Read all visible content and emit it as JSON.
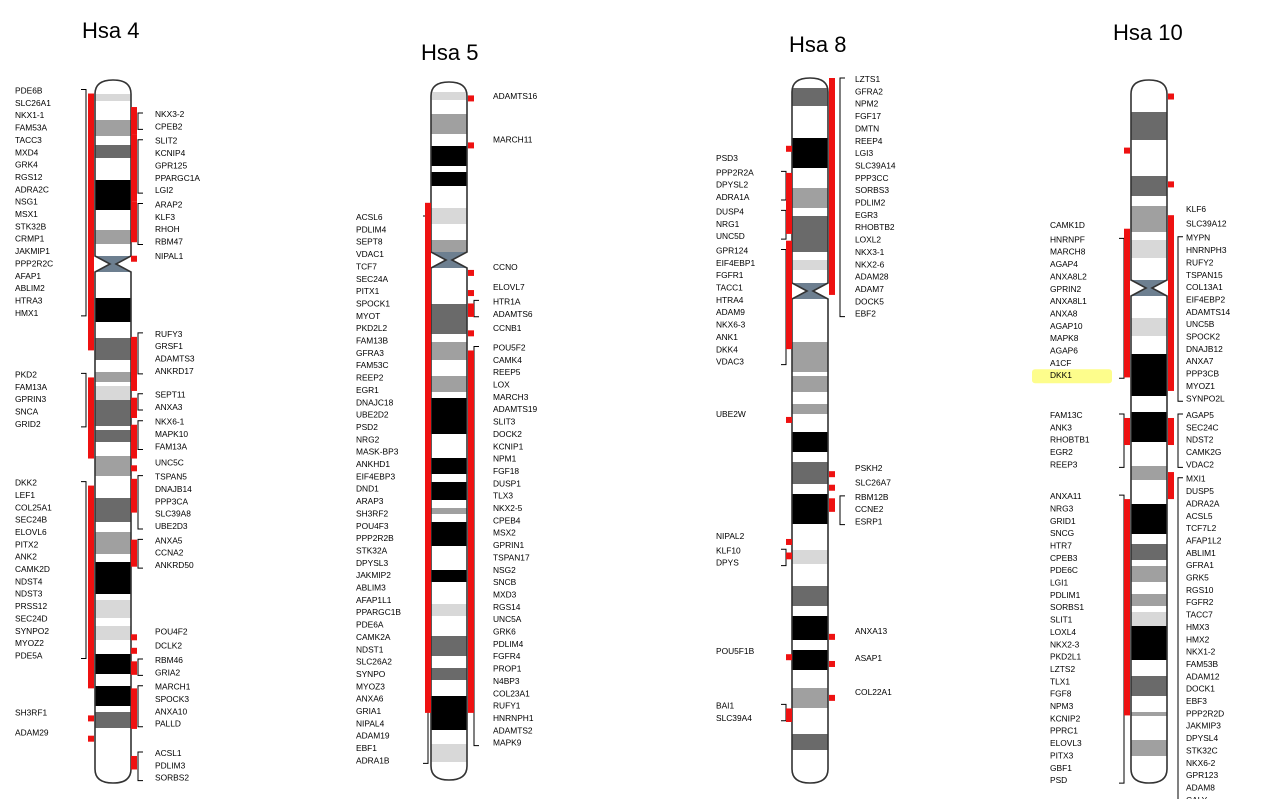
{
  "chromosomes": [
    {
      "title": "Hsa 4",
      "groups": [
        {
          "side": "left",
          "range": [
            1,
            20
          ],
          "genes": [
            "PDE6B",
            "SLC26A1",
            "NKX1-1",
            "FAM53A",
            "TACC3",
            "MXD4",
            "GRK4",
            "RGS12",
            "ADRA2C",
            "NSG1",
            "MSX1",
            "STK32B",
            "CRMP1",
            "JAKMIP1",
            "PPP2R2C",
            "AFAP1",
            "ABLIM2",
            "HTRA3",
            "HMX1"
          ]
        },
        {
          "side": "right",
          "range": [
            2,
            4
          ],
          "genes": [
            "NKX3-2",
            "CPEB2"
          ]
        },
        {
          "side": "right",
          "range": [
            4,
            9
          ],
          "genes": [
            "SLIT2",
            "KCNIP4",
            "GPR125",
            "PPARGC1A",
            "LGI2"
          ]
        },
        {
          "side": "right",
          "range": [
            9,
            12
          ],
          "genes": [
            "ARAP2",
            "KLF3",
            "RHOH",
            "RBM47"
          ]
        },
        {
          "side": "right",
          "range": [
            13,
            13
          ],
          "genes": [
            "NIPAL1"
          ]
        },
        {
          "side": "right",
          "range": [
            19,
            23
          ],
          "genes": [
            "RUFY3",
            "GRSF1",
            "ADAMTS3",
            "ANKRD17"
          ]
        },
        {
          "side": "right",
          "range": [
            23.5,
            25
          ],
          "genes": [
            "SEPT11",
            "ANXA3"
          ]
        },
        {
          "side": "left",
          "range": [
            22,
            28
          ],
          "genes": [
            "PKD2",
            "FAM13A",
            "GPRIN3",
            "SNCA",
            "GRID2"
          ]
        },
        {
          "side": "right",
          "range": [
            25.5,
            28
          ],
          "genes": [
            "NKX6-1",
            "MAPK10",
            "FAM13A"
          ]
        },
        {
          "side": "right",
          "range": [
            28.5,
            28.5
          ],
          "genes": [
            "UNC5C"
          ]
        },
        {
          "side": "right",
          "range": [
            29.5,
            32
          ],
          "genes": [
            "TSPAN5",
            "DNAJB14",
            "PPP3CA",
            "SLC39A8",
            "UBE2D3"
          ]
        },
        {
          "side": "left",
          "range": [
            30,
            45
          ],
          "genes": [
            "DKK2",
            "LEF1",
            "COL25A1",
            "SEC24B",
            "ELOVL6",
            "PITX2",
            "ANK2",
            "CAMK2D",
            "NDST4",
            "NDST3",
            "PRSS12",
            "SEC24D",
            "SYNPO2",
            "MYOZ2",
            "PDE5A"
          ]
        },
        {
          "side": "right",
          "range": [
            34,
            36
          ],
          "genes": [
            "ANXA5",
            "CCNA2",
            "ANKRD50"
          ]
        },
        {
          "side": "right",
          "range": [
            41,
            41
          ],
          "genes": [
            "POU4F2"
          ]
        },
        {
          "side": "right",
          "range": [
            42,
            42
          ],
          "genes": [
            "DCLK2"
          ]
        },
        {
          "side": "right",
          "range": [
            43,
            44
          ],
          "genes": [
            "RBM46",
            "GRIA2"
          ]
        },
        {
          "side": "right",
          "range": [
            45,
            48
          ],
          "genes": [
            "MARCH1",
            "SPOCK3",
            "ANXA10",
            "PALLD"
          ]
        },
        {
          "side": "left",
          "range": [
            47,
            47
          ],
          "genes": [
            "SH3RF1"
          ]
        },
        {
          "side": "left",
          "range": [
            48.5,
            48.5
          ],
          "genes": [
            "ADAM29"
          ]
        },
        {
          "side": "right",
          "range": [
            50,
            51
          ],
          "genes": [
            "ACSL1",
            "PDLIM3",
            "SORBS2"
          ]
        }
      ]
    },
    {
      "title": "Hsa 5",
      "groups": [
        {
          "side": "right",
          "range": [
            1,
            1
          ],
          "genes": [
            "ADAMTS16"
          ]
        },
        {
          "side": "right",
          "range": [
            4.5,
            4.5
          ],
          "genes": [
            "MARCH11"
          ]
        },
        {
          "side": "left",
          "range": [
            9,
            47
          ],
          "genes": [
            "ACSL6",
            "PDLIM4",
            "SEPT8",
            "VDAC1",
            "TCF7",
            "SEC24A",
            "PITX1",
            "SPOCK1",
            "MYOT",
            "PKD2L2",
            "FAM13B",
            "GFRA3",
            "FAM53C",
            "REEP2",
            "EGR1",
            "DNAJC18",
            "UBE2D2",
            "PSD2",
            "NRG2",
            "MASK-BP3",
            "ANKHD1",
            "EIF4EBP3",
            "DND1",
            "ARAP3",
            "SH3RF2",
            "POU4F3",
            "PPP2R2B",
            "STK32A",
            "DPYSL3",
            "JAKMIP2",
            "ABLIM3",
            "AFAP1L1",
            "PPARGC1B",
            "PDE6A",
            "CAMK2A",
            "NDST1",
            "SLC26A2",
            "SYNPO",
            "MYOZ3",
            "ANXA6",
            "GRIA1",
            "NIPAL4",
            "ADAM19",
            "EBF1",
            "ADRA1B"
          ]
        },
        {
          "side": "right",
          "range": [
            14,
            14
          ],
          "genes": [
            "CCNO"
          ]
        },
        {
          "side": "right",
          "range": [
            15.5,
            15.5
          ],
          "genes": [
            "ELOVL7"
          ]
        },
        {
          "side": "right",
          "range": [
            16.5,
            17.5
          ],
          "genes": [
            "HTR1A",
            "ADAMTS6"
          ]
        },
        {
          "side": "right",
          "range": [
            18.5,
            18.5
          ],
          "genes": [
            "CCNB1"
          ]
        },
        {
          "side": "right",
          "range": [
            20,
            47
          ],
          "genes": [
            "POU5F2",
            "CAMK4",
            "REEP5",
            "LOX",
            "MARCH3",
            "ADAMTS19",
            "SLIT3",
            "DOCK2",
            "KCNIP1",
            "NPM1",
            "FGF18",
            "DUSP1",
            "TLX3",
            "NKX2-5",
            "CPEB4",
            "MSX2",
            "GPRIN1",
            "TSPAN17",
            "NSG2",
            "SNCB",
            "MXD3",
            "RGS14",
            "UNC5A",
            "GRK6",
            "PDLIM4",
            "FGFR4",
            "PROP1",
            "N4BP3",
            "COL23A1",
            "RUFY1",
            "HNRNPH1",
            "ADAMTS2",
            "MAPK9"
          ]
        }
      ]
    },
    {
      "title": "Hsa 8",
      "groups": [
        {
          "side": "right",
          "range": [
            0,
            16
          ],
          "genes": [
            "LZTS1",
            "GFRA2",
            "NPM2",
            "FGF17",
            "DMTN",
            "REEP4",
            "LGI3",
            "SLC39A14",
            "PPP3CC",
            "SORBS3",
            "PDLIM2",
            "EGR3",
            "RHOBTB2",
            "LOXL2",
            "NKX3-1",
            "NKX2-6",
            "ADAM28",
            "ADAM7",
            "DOCK5",
            "EBF2"
          ]
        },
        {
          "side": "left",
          "range": [
            5,
            5
          ],
          "genes": [
            "PSD3"
          ]
        },
        {
          "side": "left",
          "range": [
            7,
            9
          ],
          "genes": [
            "PPP2R2A",
            "DPYSL2",
            "ADRA1A"
          ]
        },
        {
          "side": "left",
          "range": [
            9,
            11.5
          ],
          "genes": [
            "DUSP4",
            "NRG1",
            "UNC5D"
          ]
        },
        {
          "side": "left",
          "range": [
            12,
            20
          ],
          "genes": [
            "GPR124",
            "EIF4EBP1",
            "FGFR1",
            "TACC1",
            "HTRA4",
            "ADAM9",
            "NKX6-3",
            "ANK1",
            "DKK4",
            "VDAC3"
          ]
        },
        {
          "side": "left",
          "range": [
            25,
            25
          ],
          "genes": [
            "UBE2W"
          ]
        },
        {
          "side": "right",
          "range": [
            29,
            29
          ],
          "genes": [
            "PSKH2"
          ]
        },
        {
          "side": "right",
          "range": [
            30,
            30
          ],
          "genes": [
            "SLC26A7"
          ]
        },
        {
          "side": "right",
          "range": [
            31,
            32
          ],
          "genes": [
            "RBM12B",
            "CCNE2",
            "ESRP1"
          ]
        },
        {
          "side": "left",
          "range": [
            34,
            34
          ],
          "genes": [
            "NIPAL2"
          ]
        },
        {
          "side": "left",
          "range": [
            35,
            35.5
          ],
          "genes": [
            "KLF10",
            "DPYS"
          ]
        },
        {
          "side": "right",
          "range": [
            41,
            41
          ],
          "genes": [
            "ANXA13"
          ]
        },
        {
          "side": "left",
          "range": [
            42.5,
            42.5
          ],
          "genes": [
            "POU5F1B"
          ]
        },
        {
          "side": "right",
          "range": [
            43,
            43
          ],
          "genes": [
            "ASAP1"
          ]
        },
        {
          "side": "right",
          "range": [
            45.5,
            45.5
          ],
          "genes": [
            "COL22A1"
          ]
        },
        {
          "side": "left",
          "range": [
            46.5,
            47.5
          ],
          "genes": [
            "BAI1",
            "SLC39A4"
          ]
        }
      ]
    },
    {
      "title": "Hsa 10",
      "groups": [
        {
          "side": "right",
          "range": [
            1,
            1
          ],
          "genes": [
            "KLF6"
          ]
        },
        {
          "side": "left",
          "range": [
            5,
            5
          ],
          "genes": [
            "CAMK1D"
          ]
        },
        {
          "side": "right",
          "range": [
            7.5,
            7.5
          ],
          "genes": [
            "SLC39A12"
          ]
        },
        {
          "side": "left",
          "range": [
            11,
            22
          ],
          "genes": [
            "HNRNPF",
            "MARCH8",
            "AGAP4",
            "ANXA8L2",
            "GPRIN2",
            "ANXA8L1",
            "ANXA8",
            "AGAP10",
            "MAPK8",
            "AGAP6",
            "A1CF",
            "DKK1"
          ]
        },
        {
          "side": "right",
          "range": [
            10,
            23
          ],
          "genes": [
            "MYPN",
            "HNRNPH3",
            "RUFY2",
            "TSPAN15",
            "COL13A1",
            "EIF4EBP2",
            "ADAMTS14",
            "UNC5B",
            "SPOCK2",
            "DNAJB12",
            "ANXA7",
            "PPP3CB",
            "MYOZ1",
            "SYNPO2L"
          ]
        },
        {
          "side": "left",
          "range": [
            25,
            27
          ],
          "genes": [
            "FAM13C",
            "ANK3",
            "RHOBTB1",
            "EGR2",
            "REEP3"
          ]
        },
        {
          "side": "right",
          "range": [
            25,
            27
          ],
          "genes": [
            "AGAP5",
            "SEC24C",
            "NDST2",
            "CAMK2G",
            "VDAC2"
          ]
        },
        {
          "side": "right",
          "range": [
            29,
            31
          ],
          "genes": [
            "MXI1",
            "DUSP5",
            "ADRA2A",
            "ACSL5",
            "TCF7L2",
            "AFAP1L2",
            "ABLIM1",
            "GFRA1",
            "GRK5",
            "RGS10",
            "FGFR2",
            "TACC7",
            "HMX3",
            "HMX2",
            "NKX1-2",
            "FAM53B",
            "ADAM12",
            "DOCK1",
            "EBF3",
            "PPP2R2D",
            "JAKMIP3",
            "DPYSL4",
            "STK32C",
            "NKX6-2",
            "GPR123",
            "ADAM8",
            "CALY"
          ]
        },
        {
          "side": "left",
          "range": [
            31,
            47
          ],
          "genes": [
            "ANXA11",
            "NRG3",
            "GRID1",
            "SNCG",
            "HTR7",
            "CPEB3",
            "PDE6C",
            "LGI1",
            "PDLIM1",
            "SORBS1",
            "SLIT1",
            "LOXL4",
            "NKX2-3",
            "PKD2L1",
            "LZTS2",
            "TLX1",
            "FGF8",
            "NPM3",
            "KCNIP2",
            "PPRC1",
            "ELOVL3",
            "PITX3",
            "GBF1",
            "PSD"
          ]
        }
      ]
    }
  ],
  "highlighted_gene": "DKK1",
  "colors": {
    "synteny_red": "#ee1111",
    "highlight_yellow": "#fdfd8c",
    "band_dark": "#000000",
    "band_mid": "#6a6a6a",
    "band_light": "#a0a0a0",
    "band_pale": "#d8d8d8",
    "centromere": "#6d7f90"
  }
}
